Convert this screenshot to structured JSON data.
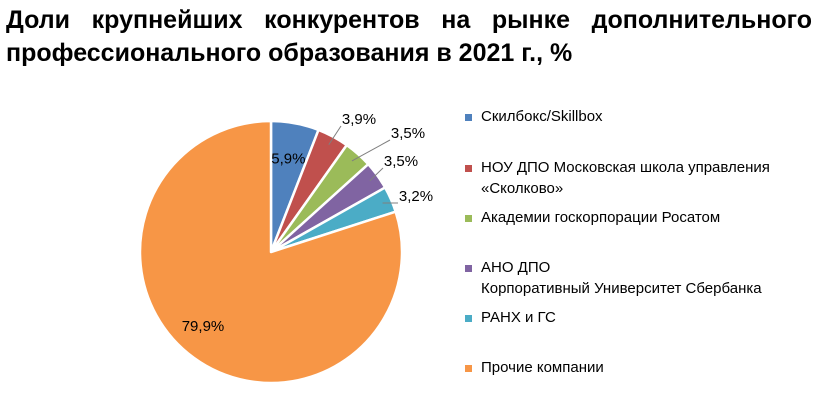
{
  "title": "Доли крупнейших конкурентов на рынке дополнительного профессионального образования в 2021 г., %",
  "chart_data": {
    "type": "pie",
    "title": "Доли крупнейших конкурентов на рынке дополнительного профессионального образования в 2021 г., %",
    "legend_position": "right",
    "start_angle_deg": 0,
    "direction": "clockwise",
    "slices": [
      {
        "label": "Скилбокс/Skillbox",
        "value": 5.9,
        "value_label": "5,9%",
        "color": "#4F81BD"
      },
      {
        "label": "НОУ ДПО Московская школа управления «Сколково»",
        "value": 3.9,
        "value_label": "3,9%",
        "color": "#C0504D"
      },
      {
        "label": "Академии госкорпорации Росатом",
        "value": 3.5,
        "value_label": "3,5%",
        "color": "#9BBB59"
      },
      {
        "label": "АНО ДПО Корпоративный Университет Сбербанка",
        "value": 3.5,
        "value_label": "3,5%",
        "color": "#8064A2"
      },
      {
        "label": "РАНХ и ГС",
        "value": 3.2,
        "value_label": "3,2%",
        "color": "#4BACC6"
      },
      {
        "label": "Прочие компании",
        "value": 79.9,
        "value_label": "79,9%",
        "color": "#F79646"
      }
    ]
  },
  "legend": {
    "items": [
      {
        "lines": [
          "Скилбокс/Skillbox"
        ]
      },
      {
        "lines": [
          "НОУ ДПО Московская школа управления",
          "«Сколково»"
        ]
      },
      {
        "lines": [
          "Академии госкорпорации Росатом"
        ]
      },
      {
        "lines": [
          "АНО ДПО",
          "Корпоративный Университет Сбербанка"
        ]
      },
      {
        "lines": [
          "РАНХ и ГС"
        ]
      },
      {
        "lines": [
          "Прочие компании"
        ]
      }
    ]
  }
}
